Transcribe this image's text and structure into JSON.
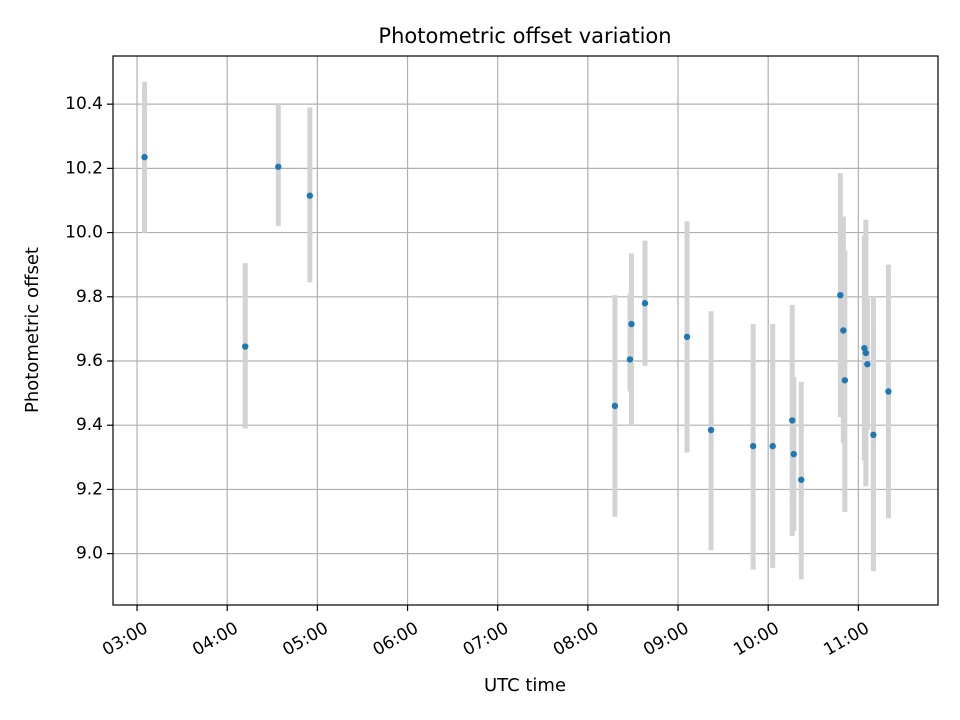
{
  "chart_data": {
    "type": "scatter",
    "title": "Photometric offset variation",
    "xlabel": "UTC time",
    "ylabel": "Photometric offset",
    "x_axis": {
      "kind": "time",
      "range": [
        "02:44",
        "11:53"
      ],
      "ticks": [
        "03:00",
        "04:00",
        "05:00",
        "06:00",
        "07:00",
        "08:00",
        "09:00",
        "10:00",
        "11:00"
      ]
    },
    "y_axis": {
      "range": [
        8.84,
        10.55
      ],
      "ticks": [
        "9.0",
        "9.2",
        "9.4",
        "9.6",
        "9.8",
        "10.0",
        "10.2",
        "10.4"
      ]
    },
    "grid": true,
    "colors": {
      "points": "#1f77b4",
      "errorbars": "#d3d3d3",
      "grid": "#b0b0b0"
    },
    "points": [
      {
        "x": "03:05",
        "y": 10.235,
        "err_low": 10.0,
        "err_high": 10.47
      },
      {
        "x": "04:12",
        "y": 9.645,
        "err_low": 9.39,
        "err_high": 9.905
      },
      {
        "x": "04:34",
        "y": 10.205,
        "err_low": 10.02,
        "err_high": 10.4
      },
      {
        "x": "04:55",
        "y": 10.115,
        "err_low": 9.845,
        "err_high": 10.39
      },
      {
        "x": "08:18",
        "y": 9.46,
        "err_low": 9.115,
        "err_high": 9.805
      },
      {
        "x": "08:28",
        "y": 9.605,
        "err_low": 9.505,
        "err_high": 9.81
      },
      {
        "x": "08:29",
        "y": 9.715,
        "err_low": 9.4,
        "err_high": 9.935
      },
      {
        "x": "08:38",
        "y": 9.78,
        "err_low": 9.585,
        "err_high": 9.975
      },
      {
        "x": "09:06",
        "y": 9.675,
        "err_low": 9.315,
        "err_high": 10.035
      },
      {
        "x": "09:22",
        "y": 9.385,
        "err_low": 9.01,
        "err_high": 9.755
      },
      {
        "x": "09:50",
        "y": 9.335,
        "err_low": 8.95,
        "err_high": 9.715
      },
      {
        "x": "10:03",
        "y": 9.335,
        "err_low": 8.955,
        "err_high": 9.715
      },
      {
        "x": "10:16",
        "y": 9.415,
        "err_low": 9.055,
        "err_high": 9.775
      },
      {
        "x": "10:17",
        "y": 9.31,
        "err_low": 9.07,
        "err_high": 9.55
      },
      {
        "x": "10:22",
        "y": 9.23,
        "err_low": 8.92,
        "err_high": 9.535
      },
      {
        "x": "10:48",
        "y": 9.805,
        "err_low": 9.425,
        "err_high": 10.185
      },
      {
        "x": "10:50",
        "y": 9.695,
        "err_low": 9.345,
        "err_high": 10.05
      },
      {
        "x": "10:51",
        "y": 9.54,
        "err_low": 9.13,
        "err_high": 9.945
      },
      {
        "x": "11:04",
        "y": 9.64,
        "err_low": 9.29,
        "err_high": 9.99
      },
      {
        "x": "11:05",
        "y": 9.625,
        "err_low": 9.21,
        "err_high": 10.04
      },
      {
        "x": "11:06",
        "y": 9.59,
        "err_low": 9.385,
        "err_high": 9.795
      },
      {
        "x": "11:10",
        "y": 9.37,
        "err_low": 8.945,
        "err_high": 9.8
      },
      {
        "x": "11:20",
        "y": 9.505,
        "err_low": 9.11,
        "err_high": 9.9
      }
    ]
  }
}
